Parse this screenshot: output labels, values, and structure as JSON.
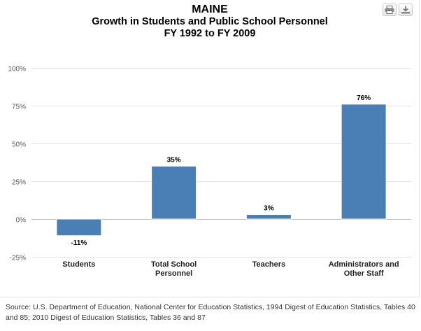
{
  "header": {
    "title": "MAINE",
    "subtitle_line1": "Growth in Students and Public School Personnel",
    "subtitle_line2": "FY 1992 to FY 2009"
  },
  "toolbar": {
    "buttons": [
      {
        "icon": "print-icon"
      },
      {
        "icon": "download-icon"
      }
    ]
  },
  "chart_data": {
    "type": "bar",
    "title": "MAINE",
    "subtitle": "Growth in Students and Public School Personnel FY 1992 to FY 2009",
    "categories": [
      [
        "Students"
      ],
      [
        "Total School",
        "Personnel"
      ],
      [
        "Teachers"
      ],
      [
        "Administrators and",
        "Other Staff"
      ]
    ],
    "values": [
      -11,
      35,
      3,
      76
    ],
    "data_labels": [
      "-11%",
      "35%",
      "3%",
      "76%"
    ],
    "y_ticks": [
      100,
      75,
      50,
      25,
      0,
      -25
    ],
    "y_tick_labels": [
      "100%",
      "75%",
      "50%",
      "25%",
      "0%",
      "-25%"
    ],
    "ylim": [
      -25,
      100
    ],
    "bar_color": "#4a7fb5",
    "grid": true,
    "legend": "none"
  },
  "source": {
    "text": "Source: U.S. Department of Education, National Center for Education Statistics, 1994 Digest of Education Statistics, Tables 40 and 85; 2010 Digest of Education Statistics, Tables 36 and 87"
  }
}
